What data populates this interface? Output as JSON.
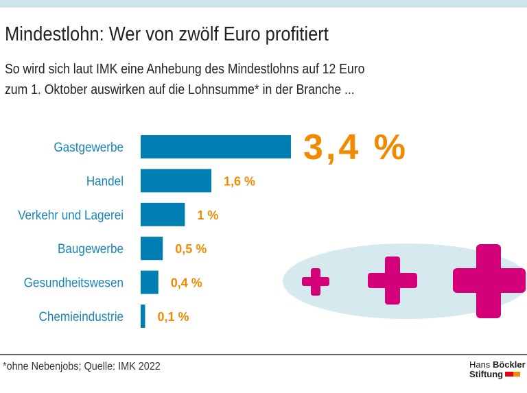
{
  "chart_data": {
    "type": "bar",
    "orientation": "horizontal",
    "title": "Mindestlohn: Wer von zwölf Euro profitiert",
    "subtitle": [
      "So wird sich laut IMK eine Anhebung des Mindestlohns auf 12 Euro",
      "zum 1. Oktober auswirken auf die Lohnsumme* in der Branche ..."
    ],
    "categories": [
      "Gastgewerbe",
      "Handel",
      "Verkehr und Lagerei",
      "Baugewerbe",
      "Gesundheitswesen",
      "Chemieindustrie"
    ],
    "values": [
      3.4,
      1.6,
      1,
      0.5,
      0.4,
      0.1
    ],
    "value_labels": [
      "3,4 %",
      "1,6 %",
      "1 %",
      "0,5 %",
      "0,4 %",
      "0,1 %"
    ],
    "unit": "%",
    "grid": false,
    "colors": {
      "bar": "#0080b2",
      "category_text": "#1a84b8",
      "value_text": "#f08a00",
      "plus": "#d4007a",
      "ellipse": "#d6e9ef"
    }
  },
  "footer": {
    "source": "*ohne Nebenjobs; Quelle: IMK 2022",
    "logo": [
      "Hans",
      "Böckler",
      "Stiftung"
    ]
  }
}
